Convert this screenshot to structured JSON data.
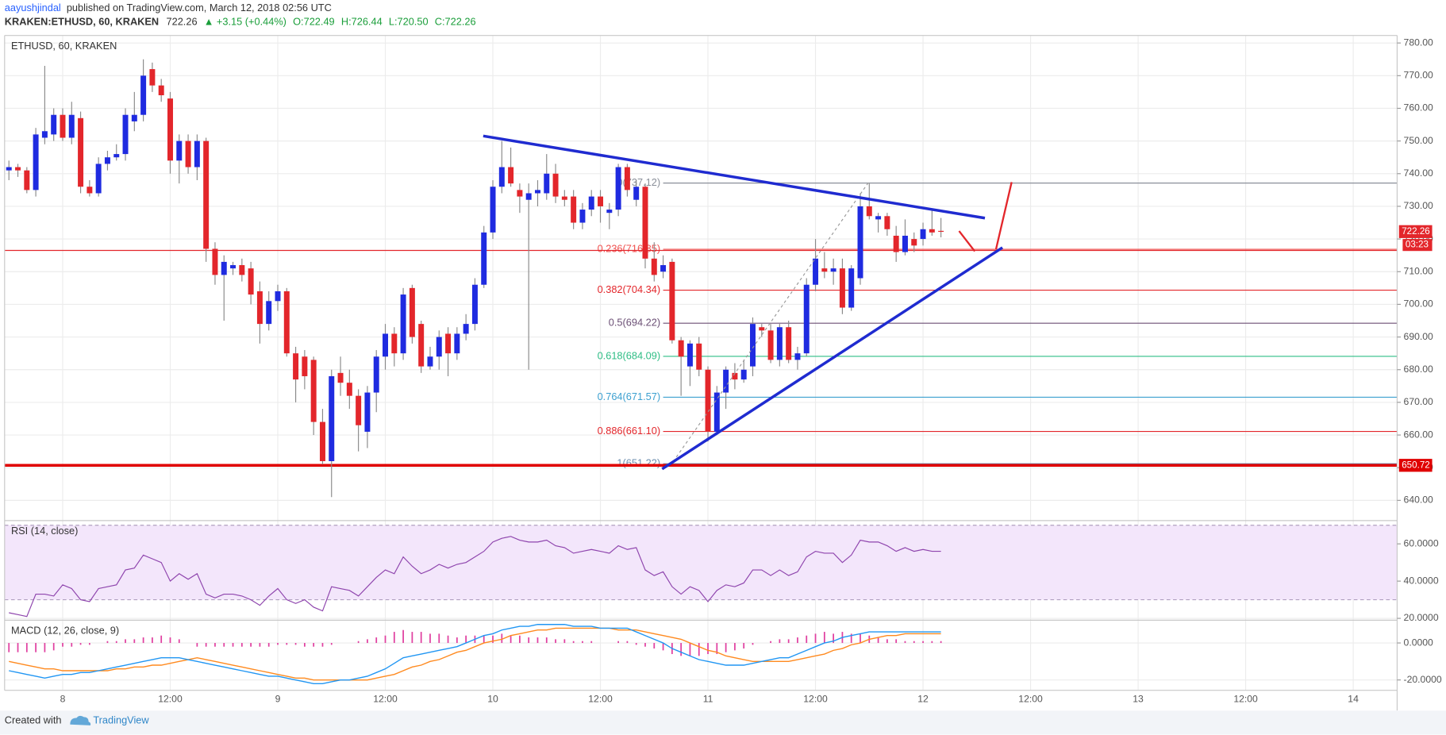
{
  "header": {
    "author": "aayushjindal",
    "published": "published on TradingView.com, March 12, 2018 02:56 UTC",
    "symbol": "KRAKEN:ETHUSD, 60, KRAKEN",
    "last": "722.26",
    "change": "▲ +3.15 (+0.44%)",
    "o": "O:722.49",
    "h": "H:726.44",
    "l": "L:720.50",
    "c": "C:722.26"
  },
  "footer": {
    "created": "Created with",
    "brand": "TradingView"
  },
  "chart_data": [
    {
      "type": "candlestick",
      "title": "ETHUSD, 60, KRAKEN",
      "up_color": "#1f2be0",
      "down_color": "#e3262b",
      "wick_color": "#8a8a8a",
      "countdown": "03:23",
      "ohlc": [
        [
          741,
          744,
          738,
          742
        ],
        [
          742,
          743,
          739,
          741
        ],
        [
          741,
          742,
          734,
          735
        ],
        [
          735,
          754,
          733,
          752
        ],
        [
          751,
          773,
          749,
          753
        ],
        [
          752,
          760,
          750,
          758
        ],
        [
          758,
          760,
          750,
          751
        ],
        [
          751,
          762,
          749,
          758
        ],
        [
          757,
          759,
          734,
          736
        ],
        [
          736,
          738,
          733,
          734
        ],
        [
          734,
          745,
          733,
          743
        ],
        [
          743,
          747,
          741,
          745
        ],
        [
          745,
          749,
          744,
          746
        ],
        [
          746,
          760,
          744,
          758
        ],
        [
          756,
          765,
          753,
          758
        ],
        [
          758,
          775,
          756,
          770
        ],
        [
          772,
          774,
          765,
          767
        ],
        [
          767,
          769,
          762,
          764
        ],
        [
          763,
          765,
          740,
          744
        ],
        [
          744,
          752,
          737,
          750
        ],
        [
          750,
          752,
          740,
          742
        ],
        [
          742,
          752,
          738,
          750
        ],
        [
          750,
          751,
          713,
          717
        ],
        [
          717,
          719,
          706,
          709
        ],
        [
          709,
          715,
          695,
          713
        ],
        [
          711,
          713,
          709,
          712
        ],
        [
          712,
          714,
          707,
          709
        ],
        [
          711,
          713,
          700,
          703
        ],
        [
          704,
          707,
          688,
          694
        ],
        [
          694,
          704,
          692,
          701
        ],
        [
          701,
          706,
          698,
          704
        ],
        [
          704,
          705,
          684,
          685
        ],
        [
          685,
          687,
          670,
          677
        ],
        [
          684,
          686,
          674,
          678
        ],
        [
          683,
          684,
          660,
          664
        ],
        [
          664,
          668,
          651,
          652
        ],
        [
          652,
          680,
          641,
          678
        ],
        [
          679,
          684,
          672,
          676
        ],
        [
          676,
          680,
          668,
          672
        ],
        [
          672,
          674,
          655,
          663
        ],
        [
          661,
          675,
          656,
          673
        ],
        [
          673,
          686,
          667,
          684
        ],
        [
          684,
          694,
          680,
          691
        ],
        [
          691,
          693,
          681,
          685
        ],
        [
          685,
          705,
          683,
          703
        ],
        [
          705,
          706,
          688,
          690
        ],
        [
          694,
          695,
          679,
          681
        ],
        [
          681,
          687,
          680,
          684
        ],
        [
          684,
          692,
          680,
          690
        ],
        [
          691,
          693,
          678,
          685
        ],
        [
          685,
          693,
          683,
          691
        ],
        [
          691,
          697,
          689,
          694
        ],
        [
          694,
          708,
          692,
          706
        ],
        [
          706,
          724,
          705,
          722
        ],
        [
          722,
          738,
          720,
          736
        ],
        [
          736,
          750,
          734,
          742
        ],
        [
          742,
          748,
          736,
          737
        ],
        [
          735,
          737,
          728,
          733
        ],
        [
          732,
          737,
          680,
          734
        ],
        [
          734,
          738,
          730,
          735
        ],
        [
          734,
          746,
          732,
          740
        ],
        [
          740,
          743,
          731,
          733
        ],
        [
          733,
          735,
          730,
          732
        ],
        [
          733,
          735,
          723,
          725
        ],
        [
          725,
          731,
          723,
          729
        ],
        [
          729,
          735,
          727,
          733
        ],
        [
          733,
          735,
          725,
          730
        ],
        [
          728,
          731,
          723,
          729
        ],
        [
          729,
          743,
          727,
          742
        ],
        [
          742,
          743,
          733,
          735
        ],
        [
          732,
          738,
          730,
          736
        ],
        [
          736,
          737,
          711,
          714
        ],
        [
          714,
          719,
          707,
          709
        ],
        [
          710,
          715,
          708,
          712
        ],
        [
          713,
          714,
          688,
          689
        ],
        [
          689,
          690,
          672,
          684
        ],
        [
          681,
          689,
          675,
          688
        ],
        [
          688,
          690,
          678,
          680
        ],
        [
          680,
          681,
          658,
          661
        ],
        [
          661,
          675,
          660,
          673
        ],
        [
          673,
          681,
          668,
          680
        ],
        [
          679,
          682,
          674,
          677
        ],
        [
          677,
          683,
          676,
          680
        ],
        [
          681,
          696,
          678,
          694
        ],
        [
          693,
          694,
          690,
          692
        ],
        [
          692,
          694,
          682,
          683
        ],
        [
          683,
          694,
          681,
          693
        ],
        [
          693,
          695,
          682,
          683
        ],
        [
          683,
          687,
          680,
          685
        ],
        [
          685,
          708,
          684,
          706
        ],
        [
          706,
          720,
          704,
          714
        ],
        [
          711,
          716,
          708,
          710
        ],
        [
          710,
          714,
          706,
          711
        ],
        [
          711,
          714,
          697,
          699
        ],
        [
          699,
          712,
          698,
          711
        ],
        [
          708,
          734,
          706,
          730
        ],
        [
          730,
          737,
          726,
          727
        ],
        [
          726,
          728,
          722,
          727
        ],
        [
          727,
          728,
          721,
          723
        ],
        [
          721,
          724,
          713,
          716
        ],
        [
          716,
          726,
          715,
          721
        ],
        [
          720,
          722,
          716,
          718
        ],
        [
          720,
          725,
          718,
          723
        ],
        [
          723,
          729,
          721,
          722
        ],
        [
          722.49,
          726.44,
          720.5,
          722.26
        ]
      ],
      "ylim": [
        633.8,
        782.3
      ],
      "yticks": [
        {
          "value": 640,
          "label": "640.00"
        },
        {
          "value": 650,
          "label": "650.00"
        },
        {
          "value": 660,
          "label": "660.00"
        },
        {
          "value": 670,
          "label": "670.00"
        },
        {
          "value": 680,
          "label": "680.00"
        },
        {
          "value": 690,
          "label": "690.00"
        },
        {
          "value": 700,
          "label": "700.00"
        },
        {
          "value": 710,
          "label": "710.00"
        },
        {
          "value": 720,
          "label": "720.00"
        },
        {
          "value": 730,
          "label": "730.00"
        },
        {
          "value": 740,
          "label": "740.00"
        },
        {
          "value": 750,
          "label": "750.00"
        },
        {
          "value": 760,
          "label": "760.00"
        },
        {
          "value": 770,
          "label": "770.00"
        },
        {
          "value": 780,
          "label": "780.00"
        }
      ],
      "xlim": [
        -0.48,
        154.9
      ],
      "xticks": [
        {
          "value": 6,
          "label": "8"
        },
        {
          "value": 18,
          "label": "12:00"
        },
        {
          "value": 30,
          "label": "9"
        },
        {
          "value": 42,
          "label": "12:00"
        },
        {
          "value": 54,
          "label": "10"
        },
        {
          "value": 66,
          "label": "12:00"
        },
        {
          "value": 78,
          "label": "11"
        },
        {
          "value": 90,
          "label": "12:00"
        },
        {
          "value": 102,
          "label": "12"
        },
        {
          "value": 114,
          "label": "12:00"
        },
        {
          "value": 126,
          "label": "13"
        },
        {
          "value": 138,
          "label": "12:00"
        },
        {
          "value": 150,
          "label": "14"
        }
      ],
      "grid": true,
      "fib": [
        {
          "label": "0(737.12)",
          "value": 737.12,
          "color": "#8a8f99"
        },
        {
          "label": "0.236(716.85)",
          "value": 716.85,
          "color": "#f0504f"
        },
        {
          "label": "0.382(704.34)",
          "value": 704.34,
          "color": "#e3262b"
        },
        {
          "label": "0.5(694.22)",
          "value": 694.22,
          "color": "#6b4f75"
        },
        {
          "label": "0.618(684.09)",
          "value": 684.09,
          "color": "#2ebd85"
        },
        {
          "label": "0.764(671.57)",
          "value": 671.57,
          "color": "#3ca0d0"
        },
        {
          "label": "0.886(661.10)",
          "value": 661.1,
          "color": "#e3262b"
        },
        {
          "label": "1(651.22)",
          "value": 651.22,
          "color": "#6f8fb0"
        }
      ],
      "hlines": [
        {
          "value": 716.5,
          "color": "#e3262b",
          "width": 1
        },
        {
          "value": 650.72,
          "color": "#e00000",
          "width": 3
        }
      ]
    },
    {
      "type": "line",
      "title": "RSI (14, close)",
      "color": "#8e44ad",
      "band": [
        30,
        70
      ],
      "band_color": "#f3e6fb",
      "values": [
        23,
        22,
        21,
        33,
        33,
        32,
        38,
        36,
        30,
        29,
        36,
        37,
        38,
        46,
        47,
        54,
        52,
        50,
        40,
        44,
        41,
        44,
        33,
        31,
        33,
        33,
        32,
        30,
        27,
        32,
        36,
        30,
        28,
        30,
        26,
        24,
        37,
        36,
        35,
        32,
        37,
        42,
        46,
        44,
        53,
        48,
        44,
        46,
        49,
        47,
        49,
        50,
        53,
        56,
        61,
        63,
        64,
        62,
        61,
        61,
        62,
        59,
        58,
        55,
        56,
        57,
        56,
        55,
        59,
        57,
        58,
        46,
        43,
        45,
        37,
        33,
        37,
        35,
        29,
        35,
        38,
        37,
        39,
        46,
        46,
        43,
        46,
        43,
        45,
        53,
        56,
        55,
        55,
        50,
        54,
        62,
        61,
        61,
        59,
        56,
        58,
        56,
        57,
        56,
        56
      ],
      "ylim": [
        19,
        72.5
      ],
      "yticks": [
        {
          "value": 20,
          "label": "20.0000"
        },
        {
          "value": 40,
          "label": "40.0000"
        },
        {
          "value": 60,
          "label": "60.0000"
        }
      ]
    },
    {
      "type": "macd",
      "title": "MACD (12, 26, close, 9)",
      "macd": {
        "color": "#2196f3",
        "values": [
          -15,
          -16,
          -17,
          -18,
          -19,
          -18,
          -17,
          -17,
          -16,
          -16,
          -15,
          -14,
          -13,
          -12,
          -11,
          -10,
          -9,
          -8,
          -8,
          -8,
          -9,
          -10,
          -11,
          -12,
          -13,
          -14,
          -15,
          -16,
          -17,
          -18,
          -18,
          -19,
          -20,
          -21,
          -22,
          -22,
          -21,
          -20,
          -20,
          -19,
          -18,
          -16,
          -14,
          -11,
          -8,
          -7,
          -6,
          -5,
          -4,
          -3,
          -2,
          0,
          2,
          4,
          5,
          7,
          8,
          9,
          9,
          10,
          10,
          10,
          10,
          9,
          9,
          9,
          8,
          8,
          8,
          8,
          6,
          4,
          2,
          0,
          -3,
          -5,
          -7,
          -9,
          -10,
          -11,
          -12,
          -12,
          -12,
          -11,
          -10,
          -9,
          -8,
          -8,
          -6,
          -4,
          -2,
          0,
          1,
          3,
          4,
          5,
          6,
          6,
          6,
          6,
          6,
          6,
          6,
          6,
          6
        ]
      },
      "signal": {
        "color": "#ff8a1f",
        "values": [
          -10,
          -11,
          -12,
          -13,
          -14,
          -14,
          -15,
          -15,
          -15,
          -15,
          -15,
          -15,
          -14,
          -14,
          -13,
          -13,
          -12,
          -12,
          -11,
          -10,
          -9,
          -8,
          -9,
          -10,
          -11,
          -12,
          -13,
          -14,
          -15,
          -16,
          -17,
          -18,
          -19,
          -19,
          -20,
          -20,
          -20,
          -20,
          -20,
          -20,
          -20,
          -19,
          -18,
          -17,
          -15,
          -13,
          -12,
          -10,
          -9,
          -7,
          -5,
          -4,
          -2,
          0,
          1,
          2,
          4,
          5,
          6,
          7,
          7,
          8,
          8,
          8,
          8,
          8,
          8,
          8,
          7,
          7,
          7,
          6,
          5,
          4,
          3,
          2,
          0,
          -2,
          -4,
          -5,
          -7,
          -8,
          -9,
          -10,
          -10,
          -10,
          -10,
          -10,
          -9,
          -8,
          -7,
          -6,
          -4,
          -3,
          -1,
          0,
          2,
          3,
          4,
          4,
          5,
          5,
          5,
          5,
          5
        ]
      },
      "histogram": {
        "color": "#e040a0",
        "values": [
          -5,
          -5,
          -5,
          -5,
          -5,
          -4,
          -2,
          -2,
          -1,
          -1,
          0,
          1,
          1,
          2,
          2,
          3,
          3,
          4,
          3,
          2,
          0,
          -2,
          -2,
          -2,
          -2,
          -2,
          -2,
          -2,
          -2,
          -2,
          -1,
          -1,
          -1,
          -2,
          -2,
          -2,
          -1,
          0,
          0,
          1,
          2,
          3,
          4,
          6,
          7,
          6,
          6,
          5,
          5,
          4,
          3,
          4,
          4,
          4,
          4,
          5,
          4,
          4,
          3,
          3,
          3,
          2,
          2,
          1,
          1,
          1,
          0,
          0,
          1,
          1,
          -1,
          -2,
          -3,
          -4,
          -6,
          -7,
          -7,
          -7,
          -6,
          -6,
          -5,
          -4,
          -3,
          -1,
          0,
          1,
          2,
          2,
          3,
          4,
          5,
          6,
          5,
          6,
          5,
          5,
          4,
          3,
          2,
          2,
          1,
          1,
          1,
          1,
          1
        ]
      },
      "ylim": [
        -25.6,
        12.3
      ],
      "yticks": [
        {
          "value": -20,
          "label": "-20.0000"
        },
        {
          "value": 0,
          "label": "0.0000"
        }
      ]
    }
  ]
}
